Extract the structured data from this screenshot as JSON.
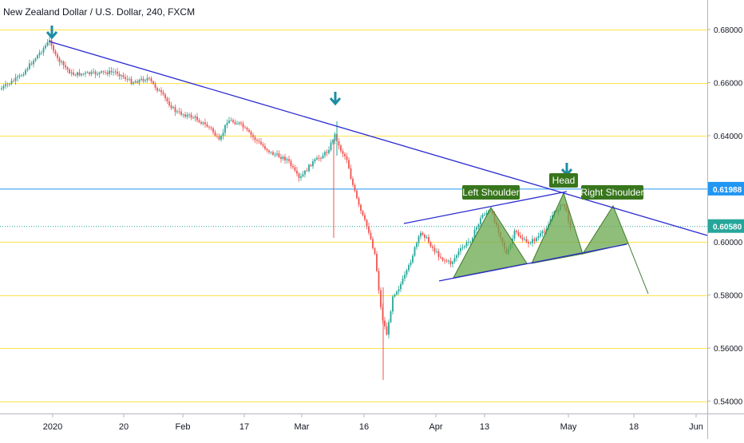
{
  "header": {
    "title": "New Zealand Dollar / U.S. Dollar, 240, FXCM"
  },
  "colors": {
    "up": "#26a69a",
    "down": "#ef5350",
    "level": "#ffe44d",
    "trend": "#2a2ad1",
    "support": "#2196f3",
    "pattern_fill": "#6aa84f",
    "label_bg": "#38761d",
    "price_line": "#26a69a",
    "arrow": "#1d8ca3"
  },
  "chart_data": {
    "type": "candlestick",
    "title": "New Zealand Dollar / U.S. Dollar, 240, FXCM",
    "ylim": [
      0.535,
      0.695
    ],
    "y_ticks": [
      "0.68000",
      "0.66000",
      "0.64000",
      "0.58000",
      "0.56000",
      "0.54000"
    ],
    "x_ticks": [
      "2020",
      "20",
      "Feb",
      "17",
      "Mar",
      "16",
      "Apr",
      "13",
      "May",
      "18",
      "Jun"
    ],
    "horizontal_levels": [
      0.68,
      0.66,
      0.64,
      0.6,
      0.58,
      0.56,
      0.54
    ],
    "support_level": {
      "value": 0.61988,
      "label": "0.61988"
    },
    "last_price": {
      "value": 0.6058,
      "label": "0.60580",
      "axis_value": "0.60000"
    },
    "annotations": [
      "Left Shoulder",
      "Head",
      "Right Shoulder"
    ],
    "pattern": "head and shoulders",
    "series_path_approx": [
      {
        "x": "Dec 20",
        "y": 0.656
      },
      {
        "x": "2020",
        "y": 0.675
      },
      {
        "x": "Jan 10",
        "y": 0.665
      },
      {
        "x": "20",
        "y": 0.663
      },
      {
        "x": "Feb",
        "y": 0.648
      },
      {
        "x": "17",
        "y": 0.644
      },
      {
        "x": "Mar",
        "y": 0.627
      },
      {
        "x": "Mar 9",
        "y": 0.644
      },
      {
        "x": "16",
        "y": 0.612
      },
      {
        "x": "Mar 19",
        "y": 0.553
      },
      {
        "x": "Apr",
        "y": 0.601
      },
      {
        "x": "13",
        "y": 0.611
      },
      {
        "x": "Apr 20",
        "y": 0.593
      },
      {
        "x": "May",
        "y": 0.616
      },
      {
        "x": "May 4",
        "y": 0.606
      }
    ]
  }
}
